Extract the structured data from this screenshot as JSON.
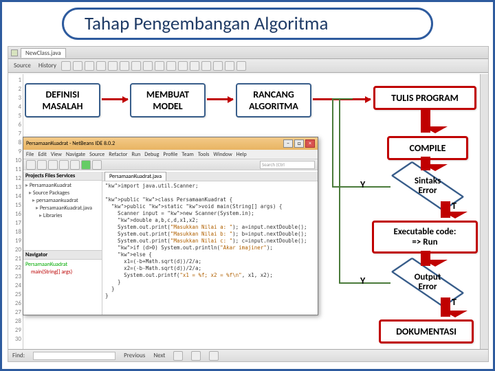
{
  "title": "Tahap Pengembangan Algoritma",
  "flow": {
    "step1": "DEFINISI\nMASALAH",
    "step2": "MEMBUAT\nMODEL",
    "step3": "RANCANG\nALGORITMA",
    "tulis": "TULIS PROGRAM",
    "compile": "COMPILE",
    "sintaks": "Sintaks\nError",
    "exec": "Executable code:\n=> Run",
    "output": "Output\nError",
    "dokumentasi": "DOKUMENTASI",
    "y1": "Y",
    "t1": "T",
    "y2": "Y",
    "t2": "T"
  },
  "outerIDE": {
    "tab": "NewClass.java",
    "toolbarLeft": "Source",
    "toolbarHist": "History",
    "findLabel": "Find:",
    "prev": "Previous",
    "next": "Next",
    "lineNumbers": [
      "1",
      "2",
      "3",
      "4",
      "5",
      "6",
      "7",
      "8",
      "9",
      "10",
      "11",
      "12",
      "13",
      "14",
      "15",
      "16",
      "17",
      "18",
      "19",
      "20",
      "21",
      "22",
      "23",
      "24",
      "25",
      "26",
      "27",
      "28",
      "29",
      "30"
    ]
  },
  "nb": {
    "title": "PersamaanKuadrat - NetBeans IDE 8.0.2",
    "menu": [
      "File",
      "Edit",
      "View",
      "Navigate",
      "Source",
      "Refactor",
      "Run",
      "Debug",
      "Profile",
      "Team",
      "Tools",
      "Window",
      "Help"
    ],
    "search": "Search (Ctrl",
    "projectsHdr": "Projects   Files   Services",
    "navHdr": "Navigator",
    "tree": [
      "PersamaanKuadrat",
      "Source Packages",
      "persamaankuadrat",
      "PersamaanKuadrat.java",
      "Libraries"
    ],
    "navItem": "PersamaanKuadrat",
    "navMain": "main(String[] args)",
    "editorTab": "PersamaanKuadrat.java",
    "code": "import java.util.Scanner;\n\npublic class PersamaanKuadrat {\n  public static void main(String[] args) {\n    Scanner input = new Scanner(System.in);\n    double a,b,c,d,x1,x2;\n    System.out.print(\"Masukkan Nilai a: \"); a=input.nextDouble();\n    System.out.print(\"Masukkan Nilai b: \"); b=input.nextDouble();\n    System.out.print(\"Masukkan Nilai c: \"); c=input.nextDouble();\n    if (d>0) System.out.println(\"Akar imajiner\");\n    else {\n      x1=(-b+Math.sqrt(d))/2/a;\n      x2=(-b-Math.sqrt(d))/2/a;\n      System.out.printf(\"x1 = %f; x2 = %f\\n\", x1, x2);\n    }\n  }\n}"
  },
  "colors": {
    "frame": "#2e5b9e",
    "boxBorder": "#385d8a",
    "redBox": "#c00000",
    "feedback": "#4a7a3a"
  }
}
